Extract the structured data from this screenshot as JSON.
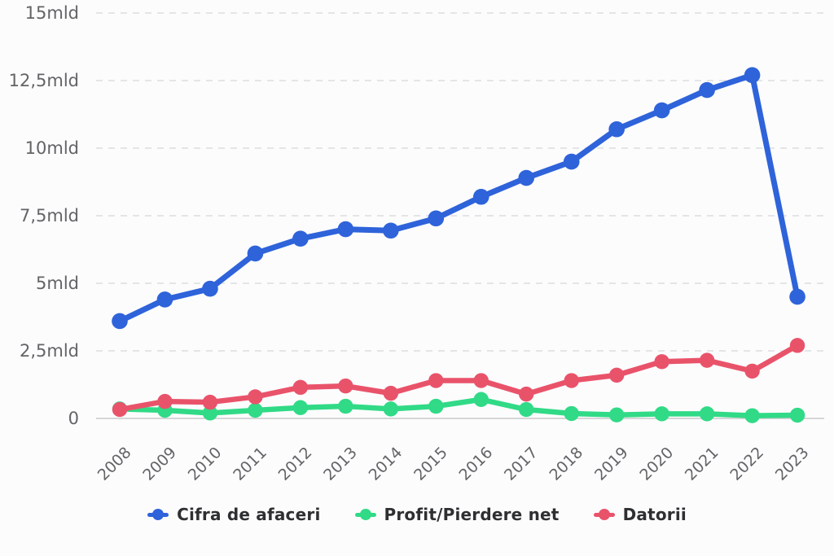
{
  "chart_data": {
    "type": "line",
    "title": "",
    "xlabel": "",
    "ylabel": "",
    "unit": "mld",
    "x": [
      "2008",
      "2009",
      "2010",
      "2011",
      "2012",
      "2013",
      "2014",
      "2015",
      "2016",
      "2017",
      "2018",
      "2019",
      "2020",
      "2021",
      "2022",
      "2023"
    ],
    "series": [
      {
        "name": "Cifra de afaceri",
        "color": "#2e63da",
        "values": [
          3.6,
          4.4,
          4.8,
          6.1,
          6.65,
          7.0,
          6.95,
          7.4,
          8.2,
          8.9,
          9.5,
          10.7,
          11.4,
          12.15,
          12.7,
          4.5
        ]
      },
      {
        "name": "Profit/Pierdere net",
        "color": "#31da86",
        "values": [
          0.35,
          0.3,
          0.2,
          0.3,
          0.4,
          0.45,
          0.35,
          0.45,
          0.7,
          0.33,
          0.18,
          0.13,
          0.17,
          0.17,
          0.1,
          0.12
        ]
      },
      {
        "name": "Datorii",
        "color": "#e9536a",
        "values": [
          0.33,
          0.63,
          0.6,
          0.8,
          1.15,
          1.2,
          0.93,
          1.4,
          1.4,
          0.9,
          1.4,
          1.6,
          2.1,
          2.15,
          1.75,
          2.7
        ]
      }
    ],
    "y_ticks": [
      {
        "value": 0,
        "label": "0"
      },
      {
        "value": 2.5,
        "label": "2,5mld"
      },
      {
        "value": 5,
        "label": "5mld"
      },
      {
        "value": 7.5,
        "label": "7,5mld"
      },
      {
        "value": 10,
        "label": "10mld"
      },
      {
        "value": 12.5,
        "label": "12,5mld"
      },
      {
        "value": 15,
        "label": "15mld"
      }
    ],
    "ylim": [
      0,
      15
    ],
    "grid": "horizontal-dashed",
    "legend_position": "bottom",
    "colors": {
      "grid_line": "#dcdde0",
      "axis_line": "#c9cacc",
      "y_tick_text": "#636466",
      "x_tick_text": "#636466",
      "legend_text": "#2e2f31",
      "background": "#fcfcfd"
    }
  }
}
